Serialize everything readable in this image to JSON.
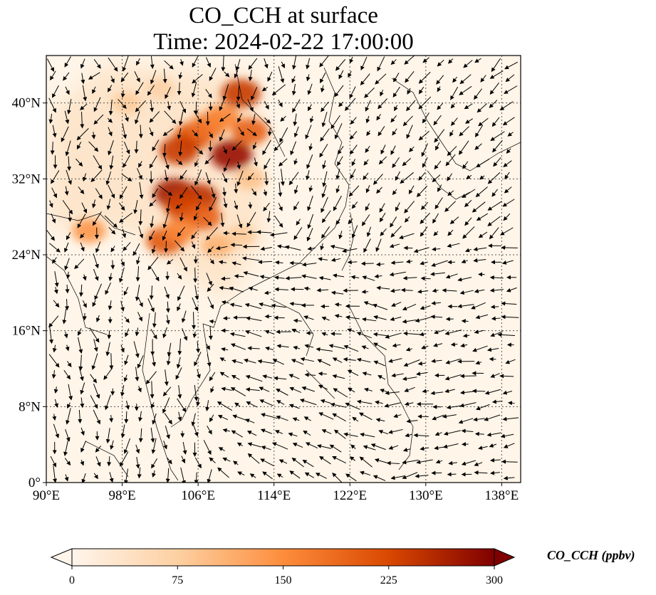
{
  "title": {
    "line1": "CO_CCH at surface",
    "line2": "Time: 2024-02-22 17:00:00"
  },
  "map": {
    "lon_range": [
      90,
      140
    ],
    "lat_range": [
      0,
      45
    ],
    "lon_ticks": [
      "90°E",
      "98°E",
      "106°E",
      "114°E",
      "122°E",
      "130°E",
      "138°E"
    ],
    "lon_tick_values": [
      90,
      98,
      106,
      114,
      122,
      130,
      138
    ],
    "lat_ticks": [
      "0°",
      "8°N",
      "16°N",
      "24°N",
      "32°N",
      "40°N"
    ],
    "lat_tick_values": [
      0,
      8,
      16,
      24,
      32,
      40
    ],
    "gridlines": true,
    "background_color": "#fff5e8",
    "plumes": [
      {
        "lon": 105.5,
        "lat": 36.5,
        "value": 220
      },
      {
        "lon": 104.0,
        "lat": 35.0,
        "value": 240
      },
      {
        "lon": 107.0,
        "lat": 37.5,
        "value": 180
      },
      {
        "lon": 109.5,
        "lat": 34.5,
        "value": 280
      },
      {
        "lon": 110.5,
        "lat": 41.0,
        "value": 240
      },
      {
        "lon": 111.5,
        "lat": 37.0,
        "value": 200
      },
      {
        "lon": 108.5,
        "lat": 38.5,
        "value": 160
      },
      {
        "lon": 103.5,
        "lat": 30.5,
        "value": 270
      },
      {
        "lon": 106.0,
        "lat": 30.0,
        "value": 250
      },
      {
        "lon": 104.5,
        "lat": 29.0,
        "value": 230
      },
      {
        "lon": 106.5,
        "lat": 28.0,
        "value": 200
      },
      {
        "lon": 102.5,
        "lat": 25.5,
        "value": 210
      },
      {
        "lon": 104.0,
        "lat": 26.5,
        "value": 160
      },
      {
        "lon": 94.5,
        "lat": 26.5,
        "value": 140
      },
      {
        "lon": 98.5,
        "lat": 40.0,
        "value": 80
      },
      {
        "lon": 102.0,
        "lat": 41.5,
        "value": 70
      },
      {
        "lon": 111.5,
        "lat": 32.0,
        "value": 90
      },
      {
        "lon": 108.0,
        "lat": 25.0,
        "value": 110
      },
      {
        "lon": 110.5,
        "lat": 26.0,
        "value": 80
      }
    ]
  },
  "colorbar": {
    "label": "CO_CCH (ppbv)",
    "min": 0,
    "max": 300,
    "ticks": [
      "0",
      "75",
      "150",
      "225",
      "300"
    ],
    "tick_values": [
      0,
      75,
      150,
      225,
      300
    ],
    "extend": "both",
    "colors": [
      "#fff5eb",
      "#fdd0a2",
      "#fd8d3c",
      "#d94801",
      "#7f0000"
    ]
  }
}
